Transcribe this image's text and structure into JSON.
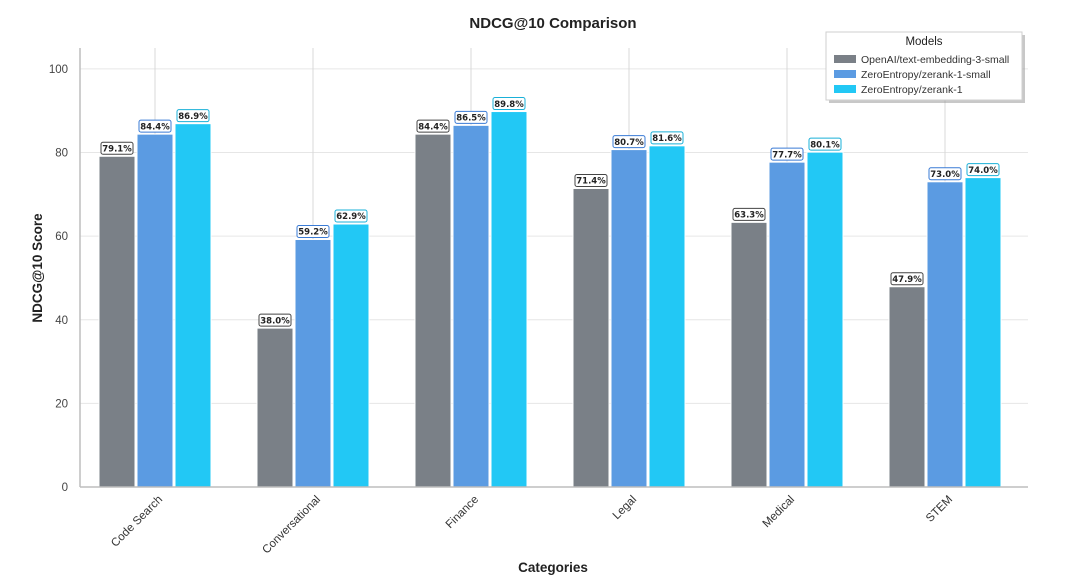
{
  "chart_data": {
    "type": "bar",
    "title": "NDCG@10 Comparison",
    "xlabel": "Categories",
    "ylabel": "NDCG@10 Score",
    "ylim": [
      0,
      105
    ],
    "yticks": [
      0,
      20,
      40,
      60,
      80,
      100
    ],
    "grid": true,
    "legend": {
      "title": "Models",
      "placement": "top-right"
    },
    "categories": [
      "Code Search",
      "Conversational",
      "Finance",
      "Legal",
      "Medical",
      "STEM"
    ],
    "series": [
      {
        "name": "OpenAI/text-embedding-3-small",
        "color": "#7a8087",
        "label_border": "#444444",
        "values": [
          79.1,
          38.0,
          84.4,
          71.4,
          63.3,
          47.9
        ],
        "labels": [
          "79.1%",
          "38.0%",
          "84.4%",
          "71.4%",
          "63.3%",
          "47.9%"
        ]
      },
      {
        "name": "ZeroEntropy/zerank-1-small",
        "color": "#5b9be2",
        "label_border": "#3a7bd5",
        "values": [
          84.4,
          59.2,
          86.5,
          80.7,
          77.7,
          73.0
        ],
        "labels": [
          "84.4%",
          "59.2%",
          "86.5%",
          "80.7%",
          "77.7%",
          "73.0%"
        ]
      },
      {
        "name": "ZeroEntropy/zerank-1",
        "color": "#22c8f5",
        "label_border": "#1ab0d8",
        "values": [
          86.9,
          62.9,
          89.8,
          81.6,
          80.1,
          74.0
        ],
        "labels": [
          "86.9%",
          "62.9%",
          "89.8%",
          "81.6%",
          "80.1%",
          "74.0%"
        ]
      }
    ]
  }
}
